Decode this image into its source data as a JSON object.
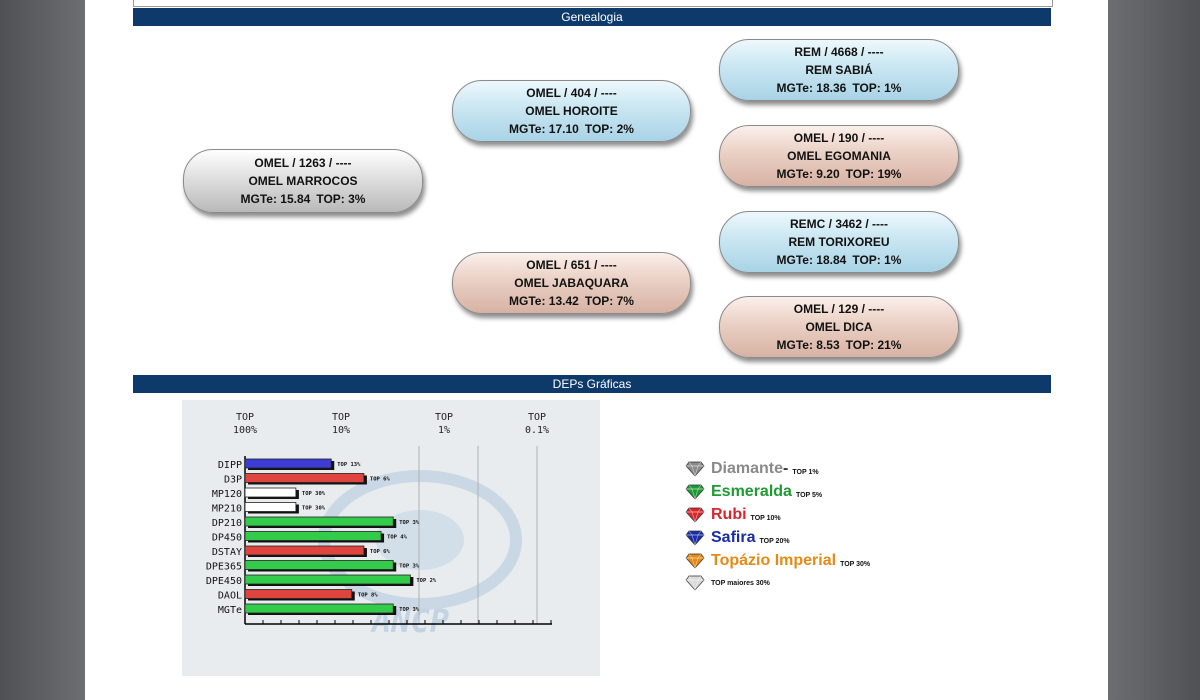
{
  "sections": {
    "genealogia": "Genealogia",
    "deps": "DEPs Gráficas"
  },
  "pedigree": {
    "sire": {
      "line1": "OMEL / 1263 / ----",
      "line2": "OMEL MARROCOS",
      "mgte": "MGTe: 15.84",
      "top": "TOP: 3%",
      "color": "#b9b9b9"
    },
    "grandsire": {
      "line1": "OMEL / 404 / ----",
      "line2": "OMEL HOROITE",
      "mgte": "MGTe: 17.10",
      "top": "TOP: 2%",
      "color": "#a8d3e6"
    },
    "granddam": {
      "line1": "OMEL / 651 / ----",
      "line2": "OMEL JABAQUARA",
      "mgte": "MGTe: 13.42",
      "top": "TOP: 7%",
      "color": "#d7b2a4"
    },
    "ggs1": {
      "line1": "REM / 4668 / ----",
      "line2": "REM SABIÁ",
      "mgte": "MGTe: 18.36",
      "top": "TOP: 1%",
      "color": "#a8d3e6"
    },
    "ggd1": {
      "line1": "OMEL / 190 / ----",
      "line2": "OMEL EGOMANIA",
      "mgte": "MGTe: 9.20",
      "top": "TOP: 19%",
      "color": "#d7b2a4"
    },
    "ggs2": {
      "line1": "REMC / 3462 / ----",
      "line2": "REM TORIXOREU",
      "mgte": "MGTe: 18.84",
      "top": "TOP: 1%",
      "color": "#a8d3e6"
    },
    "ggd2": {
      "line1": "OMEL / 129 / ----",
      "line2": "OMEL DICA",
      "mgte": "MGTe: 8.53",
      "top": "TOP: 21%",
      "color": "#d7b2a4"
    }
  },
  "chart_data": {
    "type": "bar",
    "orientation": "horizontal",
    "x_ticks": [
      {
        "top": "TOP",
        "pct": "100%"
      },
      {
        "top": "TOP",
        "pct": "10%"
      },
      {
        "top": "TOP",
        "pct": "1%"
      },
      {
        "top": "TOP",
        "pct": "0.1%"
      }
    ],
    "categories": [
      "DIPP",
      "D3P",
      "MP120",
      "MP210",
      "DP210",
      "DP450",
      "DSTAY",
      "DPE365",
      "DPE450",
      "DAOL",
      "MGTe"
    ],
    "labels": [
      "TOP 13%",
      "TOP 6%",
      "TOP 30%",
      "TOP 30%",
      "TOP 3%",
      "TOP 4%",
      "TOP 6%",
      "TOP 3%",
      "TOP 2%",
      "TOP 8%",
      "TOP 3%"
    ],
    "values": [
      13,
      6,
      30,
      30,
      3,
      4,
      6,
      3,
      2,
      8,
      3
    ],
    "bar_colors": [
      "#3d3dd6",
      "#e0443e",
      "#ffffff",
      "#ffffff",
      "#33cc4a",
      "#33cc4a",
      "#e0443e",
      "#33cc4a",
      "#33cc4a",
      "#e0443e",
      "#33cc4a"
    ],
    "watermark": "ANCP"
  },
  "legend": [
    {
      "name": "Diamante",
      "suffix": " -",
      "top": "TOP 1%",
      "color": "#8a8a8a",
      "icon": "diamond-gem-icon"
    },
    {
      "name": "Esmeralda",
      "suffix": "",
      "top": "TOP 5%",
      "color": "#1f9a34",
      "icon": "emerald-gem-icon"
    },
    {
      "name": "Rubi",
      "suffix": "",
      "top": "TOP 10%",
      "color": "#d9262c",
      "icon": "ruby-gem-icon"
    },
    {
      "name": "Safira",
      "suffix": "",
      "top": "TOP 20%",
      "color": "#1b2ca6",
      "icon": "sapphire-gem-icon"
    },
    {
      "name": "Topázio Imperial",
      "suffix": "",
      "top": "TOP 30%",
      "color": "#e58a14",
      "icon": "topaz-gem-icon"
    },
    {
      "name": "",
      "suffix": "",
      "top": "TOP maiores 30%",
      "color": "#d9d9d9",
      "icon": "white-gem-icon"
    }
  ]
}
